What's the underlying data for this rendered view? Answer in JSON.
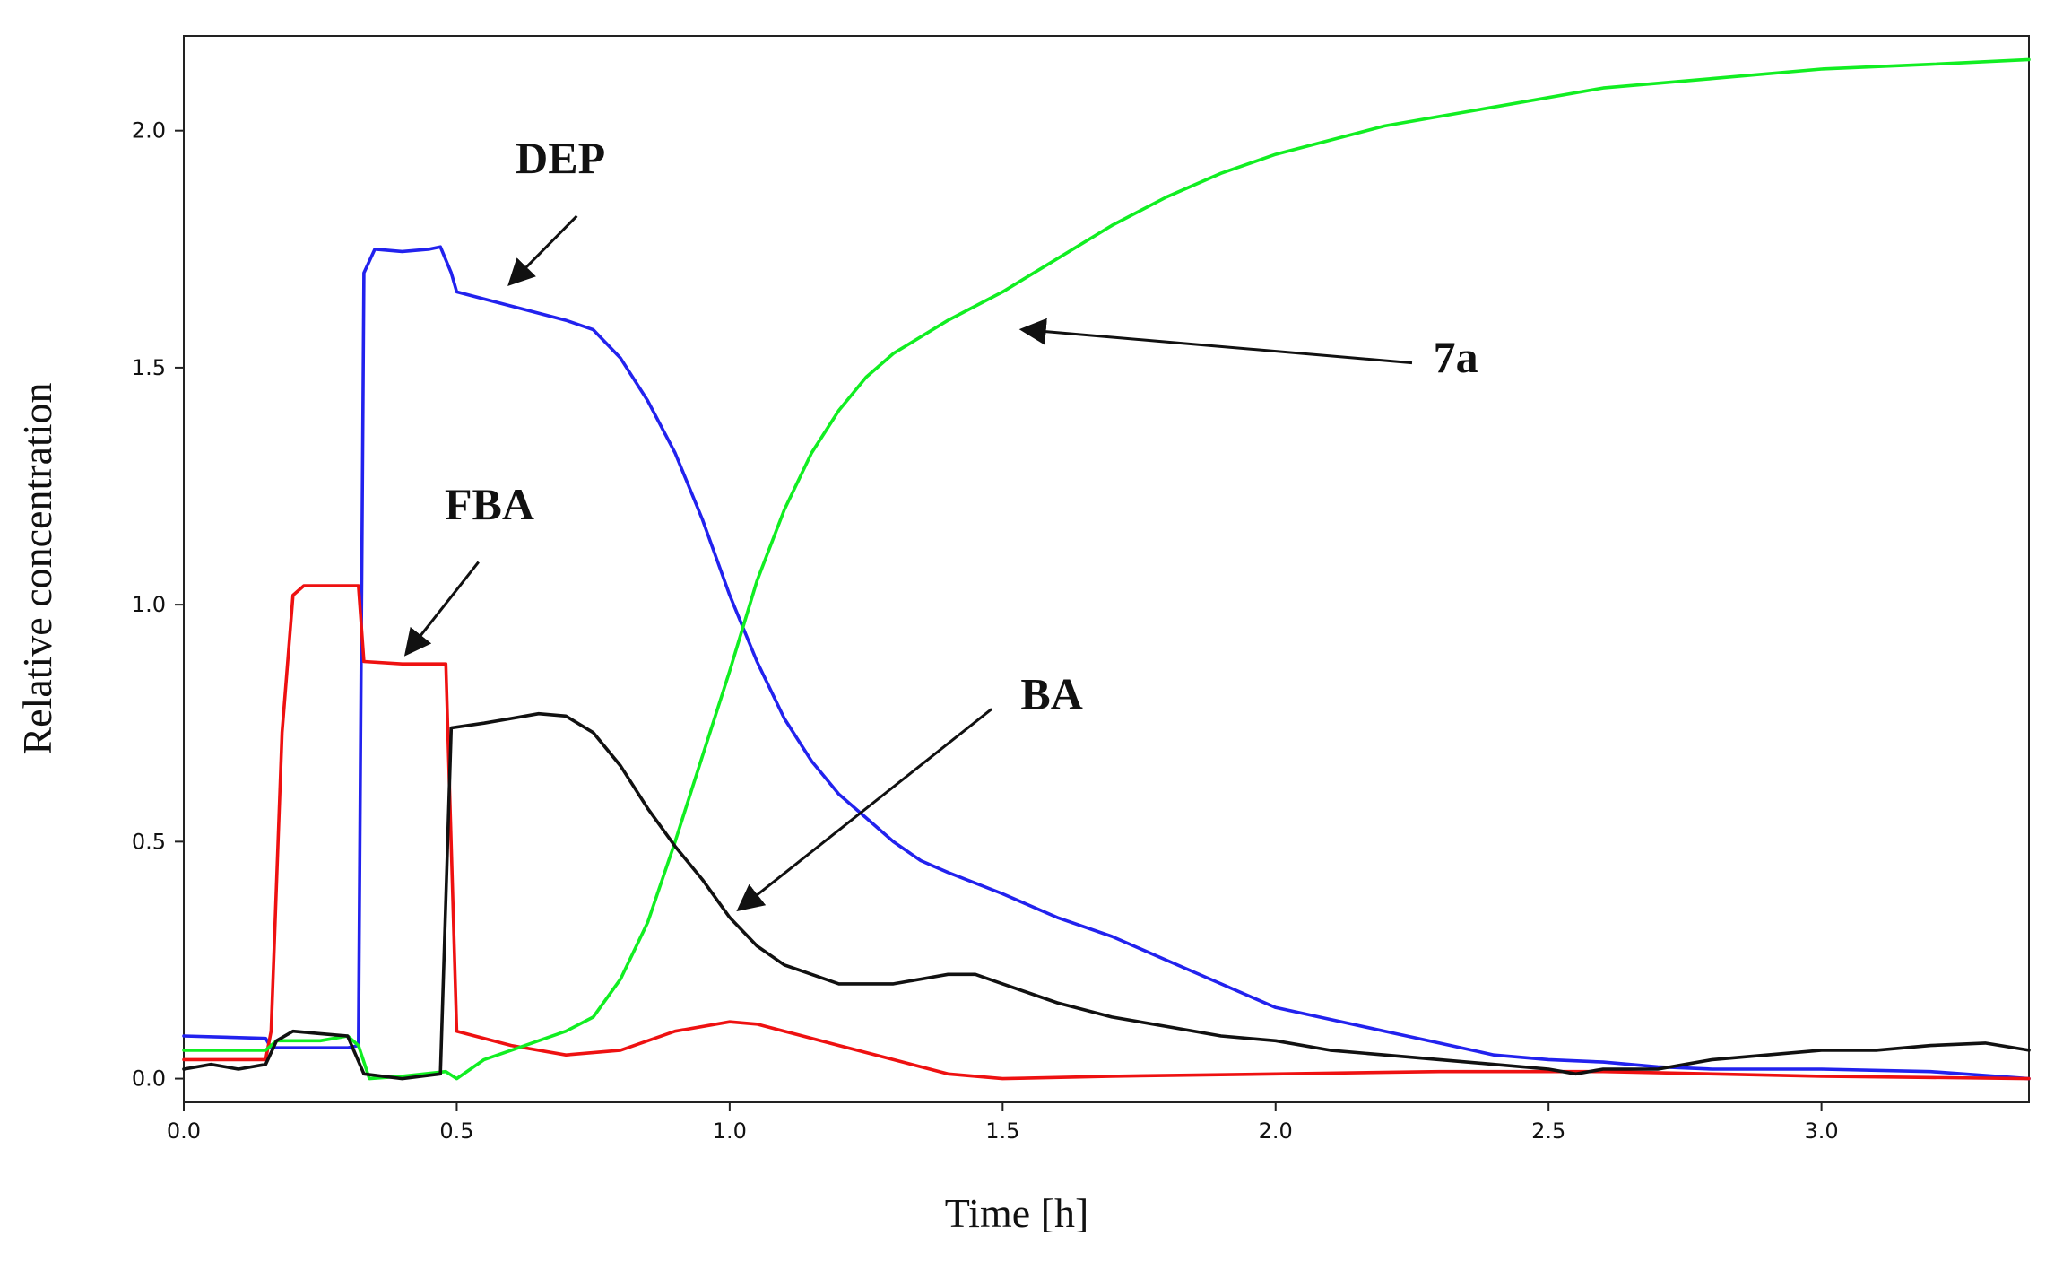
{
  "chart_data": {
    "type": "line",
    "title": "",
    "xlabel": "Time [h]",
    "ylabel": "Relative concentration",
    "xlim": [
      0,
      3.38
    ],
    "ylim": [
      -0.05,
      2.2
    ],
    "grid": false,
    "legend": "none",
    "x_ticks": [
      {
        "value": 0.0,
        "label": "0.0"
      },
      {
        "value": 0.5,
        "label": "0.5"
      },
      {
        "value": 1.0,
        "label": "1.0"
      },
      {
        "value": 1.5,
        "label": "1.5"
      },
      {
        "value": 2.0,
        "label": "2.0"
      },
      {
        "value": 2.5,
        "label": "2.5"
      },
      {
        "value": 3.0,
        "label": "3.0"
      }
    ],
    "y_ticks": [
      {
        "value": 0.0,
        "label": "0.0"
      },
      {
        "value": 0.5,
        "label": "0.5"
      },
      {
        "value": 1.0,
        "label": "1.0"
      },
      {
        "value": 1.5,
        "label": "1.5"
      },
      {
        "value": 2.0,
        "label": "2.0"
      }
    ],
    "series": [
      {
        "name": "DEP",
        "color": "#2222ee",
        "points": [
          [
            0.0,
            0.09
          ],
          [
            0.15,
            0.085
          ],
          [
            0.16,
            0.065
          ],
          [
            0.3,
            0.065
          ],
          [
            0.32,
            0.07
          ],
          [
            0.33,
            1.7
          ],
          [
            0.35,
            1.75
          ],
          [
            0.4,
            1.745
          ],
          [
            0.45,
            1.75
          ],
          [
            0.47,
            1.755
          ],
          [
            0.49,
            1.7
          ],
          [
            0.5,
            1.66
          ],
          [
            0.6,
            1.63
          ],
          [
            0.7,
            1.6
          ],
          [
            0.75,
            1.58
          ],
          [
            0.8,
            1.52
          ],
          [
            0.85,
            1.43
          ],
          [
            0.9,
            1.32
          ],
          [
            0.95,
            1.18
          ],
          [
            1.0,
            1.02
          ],
          [
            1.05,
            0.88
          ],
          [
            1.1,
            0.76
          ],
          [
            1.15,
            0.67
          ],
          [
            1.2,
            0.6
          ],
          [
            1.25,
            0.55
          ],
          [
            1.3,
            0.5
          ],
          [
            1.35,
            0.46
          ],
          [
            1.4,
            0.435
          ],
          [
            1.5,
            0.39
          ],
          [
            1.6,
            0.34
          ],
          [
            1.7,
            0.3
          ],
          [
            1.8,
            0.25
          ],
          [
            1.9,
            0.2
          ],
          [
            2.0,
            0.15
          ],
          [
            2.1,
            0.125
          ],
          [
            2.2,
            0.1
          ],
          [
            2.3,
            0.075
          ],
          [
            2.4,
            0.05
          ],
          [
            2.5,
            0.04
          ],
          [
            2.6,
            0.035
          ],
          [
            2.7,
            0.025
          ],
          [
            2.8,
            0.02
          ],
          [
            3.0,
            0.02
          ],
          [
            3.2,
            0.015
          ],
          [
            3.38,
            0.0
          ]
        ]
      },
      {
        "name": "FBA",
        "color": "#ee1111",
        "points": [
          [
            0.0,
            0.04
          ],
          [
            0.15,
            0.04
          ],
          [
            0.16,
            0.1
          ],
          [
            0.18,
            0.73
          ],
          [
            0.2,
            1.02
          ],
          [
            0.22,
            1.04
          ],
          [
            0.3,
            1.04
          ],
          [
            0.32,
            1.04
          ],
          [
            0.33,
            0.88
          ],
          [
            0.4,
            0.875
          ],
          [
            0.45,
            0.875
          ],
          [
            0.48,
            0.875
          ],
          [
            0.5,
            0.1
          ],
          [
            0.6,
            0.07
          ],
          [
            0.7,
            0.05
          ],
          [
            0.8,
            0.06
          ],
          [
            0.9,
            0.1
          ],
          [
            1.0,
            0.12
          ],
          [
            1.05,
            0.115
          ],
          [
            1.1,
            0.1
          ],
          [
            1.2,
            0.07
          ],
          [
            1.3,
            0.04
          ],
          [
            1.4,
            0.01
          ],
          [
            1.5,
            0.0
          ],
          [
            1.7,
            0.005
          ],
          [
            2.0,
            0.01
          ],
          [
            2.3,
            0.015
          ],
          [
            2.6,
            0.015
          ],
          [
            3.0,
            0.005
          ],
          [
            3.38,
            0.0
          ]
        ]
      },
      {
        "name": "7a",
        "color": "#11ee22",
        "points": [
          [
            0.0,
            0.06
          ],
          [
            0.15,
            0.06
          ],
          [
            0.17,
            0.08
          ],
          [
            0.25,
            0.08
          ],
          [
            0.3,
            0.09
          ],
          [
            0.32,
            0.07
          ],
          [
            0.34,
            0.0
          ],
          [
            0.4,
            0.005
          ],
          [
            0.48,
            0.015
          ],
          [
            0.5,
            0.0
          ],
          [
            0.55,
            0.04
          ],
          [
            0.6,
            0.06
          ],
          [
            0.7,
            0.1
          ],
          [
            0.75,
            0.13
          ],
          [
            0.8,
            0.21
          ],
          [
            0.85,
            0.33
          ],
          [
            0.9,
            0.5
          ],
          [
            0.95,
            0.68
          ],
          [
            1.0,
            0.86
          ],
          [
            1.05,
            1.05
          ],
          [
            1.1,
            1.2
          ],
          [
            1.15,
            1.32
          ],
          [
            1.2,
            1.41
          ],
          [
            1.25,
            1.48
          ],
          [
            1.3,
            1.53
          ],
          [
            1.4,
            1.6
          ],
          [
            1.5,
            1.66
          ],
          [
            1.6,
            1.73
          ],
          [
            1.7,
            1.8
          ],
          [
            1.8,
            1.86
          ],
          [
            1.9,
            1.91
          ],
          [
            2.0,
            1.95
          ],
          [
            2.2,
            2.01
          ],
          [
            2.4,
            2.05
          ],
          [
            2.6,
            2.09
          ],
          [
            2.8,
            2.11
          ],
          [
            3.0,
            2.13
          ],
          [
            3.2,
            2.14
          ],
          [
            3.38,
            2.15
          ]
        ]
      },
      {
        "name": "BA",
        "color": "#111111",
        "points": [
          [
            0.0,
            0.02
          ],
          [
            0.05,
            0.03
          ],
          [
            0.1,
            0.02
          ],
          [
            0.15,
            0.03
          ],
          [
            0.17,
            0.08
          ],
          [
            0.2,
            0.1
          ],
          [
            0.25,
            0.095
          ],
          [
            0.3,
            0.09
          ],
          [
            0.33,
            0.01
          ],
          [
            0.4,
            0.0
          ],
          [
            0.47,
            0.01
          ],
          [
            0.49,
            0.74
          ],
          [
            0.55,
            0.75
          ],
          [
            0.6,
            0.76
          ],
          [
            0.65,
            0.77
          ],
          [
            0.7,
            0.765
          ],
          [
            0.75,
            0.73
          ],
          [
            0.8,
            0.66
          ],
          [
            0.85,
            0.57
          ],
          [
            0.9,
            0.49
          ],
          [
            0.95,
            0.42
          ],
          [
            1.0,
            0.34
          ],
          [
            1.05,
            0.28
          ],
          [
            1.1,
            0.24
          ],
          [
            1.15,
            0.22
          ],
          [
            1.2,
            0.2
          ],
          [
            1.3,
            0.2
          ],
          [
            1.35,
            0.21
          ],
          [
            1.4,
            0.22
          ],
          [
            1.45,
            0.22
          ],
          [
            1.5,
            0.2
          ],
          [
            1.6,
            0.16
          ],
          [
            1.7,
            0.13
          ],
          [
            1.8,
            0.11
          ],
          [
            1.9,
            0.09
          ],
          [
            2.0,
            0.08
          ],
          [
            2.1,
            0.06
          ],
          [
            2.2,
            0.05
          ],
          [
            2.3,
            0.04
          ],
          [
            2.4,
            0.03
          ],
          [
            2.5,
            0.02
          ],
          [
            2.55,
            0.01
          ],
          [
            2.6,
            0.02
          ],
          [
            2.7,
            0.02
          ],
          [
            2.75,
            0.03
          ],
          [
            2.8,
            0.04
          ],
          [
            2.9,
            0.05
          ],
          [
            3.0,
            0.06
          ],
          [
            3.1,
            0.06
          ],
          [
            3.2,
            0.07
          ],
          [
            3.3,
            0.075
          ],
          [
            3.38,
            0.06
          ]
        ]
      }
    ],
    "annotations": [
      {
        "text": "DEP",
        "text_at": [
          0.69,
          1.91
        ],
        "arrow_from": [
          0.72,
          1.82
        ],
        "arrow_to": [
          0.6,
          1.68
        ]
      },
      {
        "text": "FBA",
        "text_at": [
          0.56,
          1.18
        ],
        "arrow_from": [
          0.54,
          1.09
        ],
        "arrow_to": [
          0.41,
          0.9
        ]
      },
      {
        "text": "7a",
        "text_at": [
          2.33,
          1.49
        ],
        "arrow_from": [
          2.25,
          1.51
        ],
        "arrow_to": [
          1.54,
          1.58
        ]
      },
      {
        "text": "BA",
        "text_at": [
          1.59,
          0.78
        ],
        "arrow_from": [
          1.48,
          0.78
        ],
        "arrow_to": [
          1.02,
          0.36
        ]
      }
    ]
  }
}
